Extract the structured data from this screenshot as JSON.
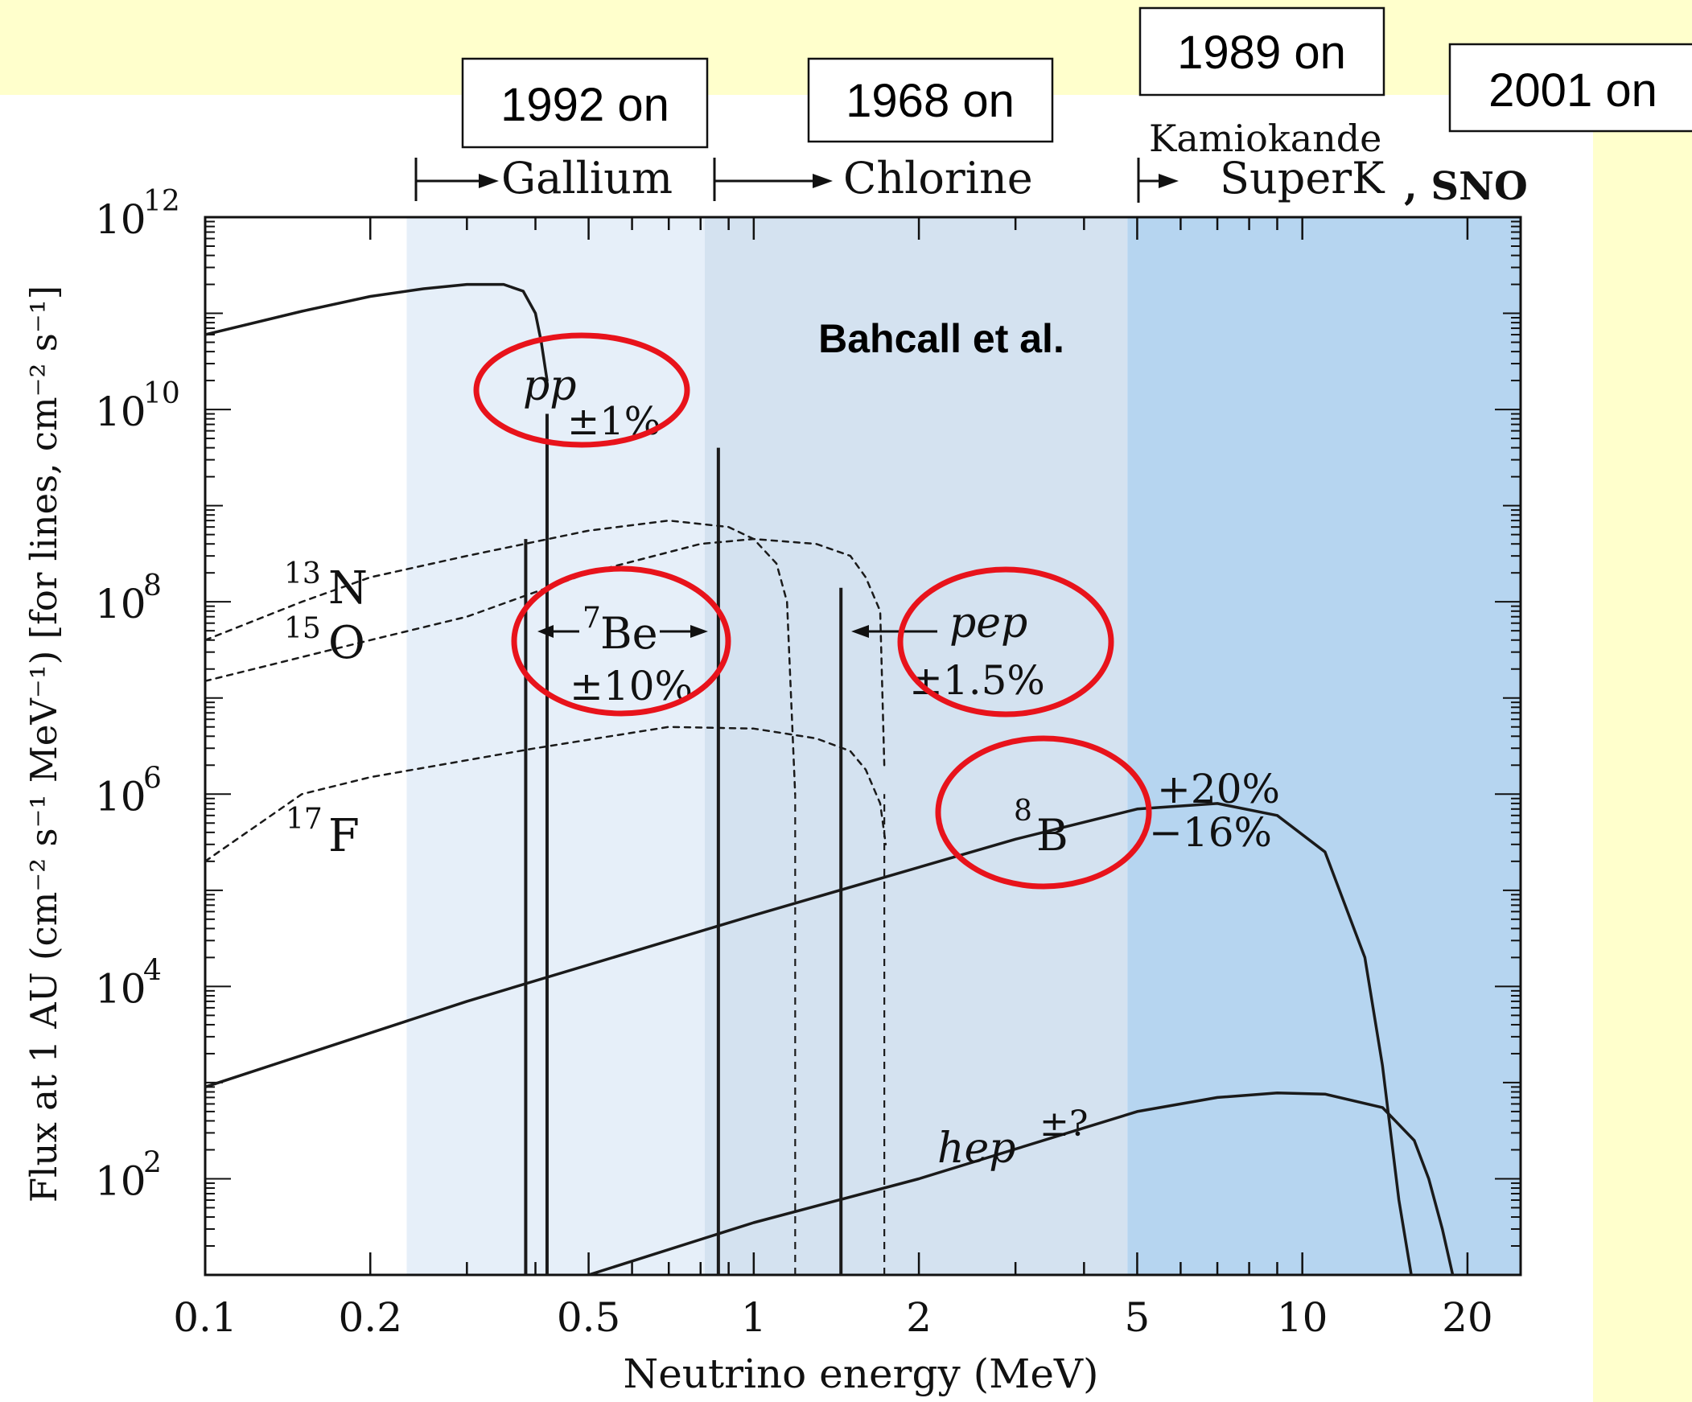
{
  "colors": {
    "slide_background": "#FFFFCC",
    "gallium_band": "#E6EFF9",
    "chlorine_band": "#D4E2F0",
    "superk_band": "#B6D5F0",
    "curve": "#1a1a1a",
    "circle": "#E8131B"
  },
  "year_boxes": [
    {
      "label": "1992 on"
    },
    {
      "label": "1968 on"
    },
    {
      "label": "1989 on"
    },
    {
      "label": "2001 on"
    }
  ],
  "experiments": {
    "gallium": "Gallium",
    "chlorine": "Chlorine",
    "kamiokande": "Kamiokande",
    "superk": "SuperK",
    "sno": ", SNO"
  },
  "chart_data": {
    "type": "line",
    "title": "Bahcall et al.",
    "xlabel": "Neutrino energy (MeV)",
    "ylabel": "Flux at 1 AU (cm⁻² s⁻¹ MeV⁻¹) [for lines, cm⁻² s⁻¹]",
    "x_scale": "log",
    "y_scale": "log",
    "xlim": [
      0.1,
      25
    ],
    "ylim": [
      10,
      1000000000000.0
    ],
    "x_ticks": [
      "0.1",
      "0.2",
      "0.5",
      "1",
      "2",
      "5",
      "10",
      "20"
    ],
    "y_ticks": [
      "10^2",
      "10^4",
      "10^6",
      "10^8",
      "10^10",
      "10^12"
    ],
    "bands": [
      {
        "name": "Gallium",
        "x": [
          0.233,
          0.814
        ]
      },
      {
        "name": "Chlorine",
        "x": [
          0.814,
          4.8
        ]
      },
      {
        "name": "SuperK",
        "x": [
          4.8,
          25
        ]
      }
    ],
    "series": [
      {
        "name": "pp",
        "style": "solid",
        "uncertainty": "±1%",
        "x": [
          0.1,
          0.15,
          0.2,
          0.25,
          0.3,
          0.35,
          0.38,
          0.4,
          0.41,
          0.42
        ],
        "y": [
          60000000000.0,
          105000000000.0,
          150000000000.0,
          180000000000.0,
          200000000000.0,
          200000000000.0,
          170000000000.0,
          100000000000.0,
          50000000000.0,
          20000000000.0
        ]
      },
      {
        "name": "13N",
        "style": "dashed",
        "x": [
          0.1,
          0.15,
          0.2,
          0.3,
          0.5,
          0.7,
          0.9,
          1.0,
          1.1,
          1.15,
          1.19
        ],
        "y": [
          40000000.0,
          100000000.0,
          180000000.0,
          300000000.0,
          550000000.0,
          700000000.0,
          600000000.0,
          450000000.0,
          250000000.0,
          100000000.0,
          1000000.0
        ]
      },
      {
        "name": "15O",
        "style": "dashed",
        "x": [
          0.1,
          0.2,
          0.3,
          0.5,
          0.8,
          1.0,
          1.3,
          1.5,
          1.6,
          1.7,
          1.73
        ],
        "y": [
          15000000.0,
          40000000.0,
          70000000.0,
          200000000.0,
          400000000.0,
          450000000.0,
          400000000.0,
          300000000.0,
          180000000.0,
          80000000.0,
          2000000.0
        ]
      },
      {
        "name": "17F",
        "style": "dashed",
        "x": [
          0.1,
          0.15,
          0.2,
          0.4,
          0.7,
          1.0,
          1.3,
          1.5,
          1.6,
          1.7,
          1.74
        ],
        "y": [
          200000.0,
          1000000.0,
          1500000.0,
          3000000.0,
          5000000.0,
          4800000.0,
          3800000.0,
          2800000.0,
          1800000.0,
          800000.0,
          300000.0
        ]
      },
      {
        "name": "8B",
        "style": "solid",
        "uncertainty": "+20% −16%",
        "x": [
          0.1,
          0.3,
          1.0,
          3.0,
          5.0,
          7.0,
          9.0,
          11.0,
          13.0,
          14.0,
          15.0,
          15.8
        ],
        "y": [
          900,
          7000,
          55000.0,
          340000.0,
          700000.0,
          800000.0,
          600000.0,
          250000.0,
          20000.0,
          1500,
          60,
          10
        ]
      },
      {
        "name": "hep",
        "style": "solid",
        "uncertainty": "±?",
        "x": [
          0.5,
          1.0,
          2.0,
          5.0,
          7.0,
          9.0,
          11.0,
          14.0,
          16.0,
          17.0,
          18.0,
          18.8
        ],
        "y": [
          10,
          35,
          100,
          500,
          700,
          780,
          760,
          550,
          250,
          100,
          30,
          10
        ]
      }
    ],
    "lines": [
      {
        "name": "7Be",
        "energy": [
          0.384,
          0.862
        ],
        "flux": [
          450000000.0,
          4000000000.0
        ],
        "uncertainty": "±10%"
      },
      {
        "name": "pep",
        "energy": 1.442,
        "flux": 140000000.0,
        "uncertainty": "±1.5%"
      }
    ]
  },
  "labels": {
    "pp": "pp",
    "pp_unc": "±1%",
    "n13_mass": "13",
    "n13_sym": "N",
    "o15_mass": "15",
    "o15_sym": "O",
    "f17_mass": "17",
    "f17_sym": "F",
    "be7_mass": "7",
    "be7_sym": "Be",
    "be7_unc": "±10%",
    "pep": "pep",
    "pep_unc": "±1.5%",
    "b8_mass": "8",
    "b8_sym": "B",
    "b8_unc_plus": "+20%",
    "b8_unc_minus": "−16%",
    "hep": "hep",
    "hep_unc": "±?"
  }
}
